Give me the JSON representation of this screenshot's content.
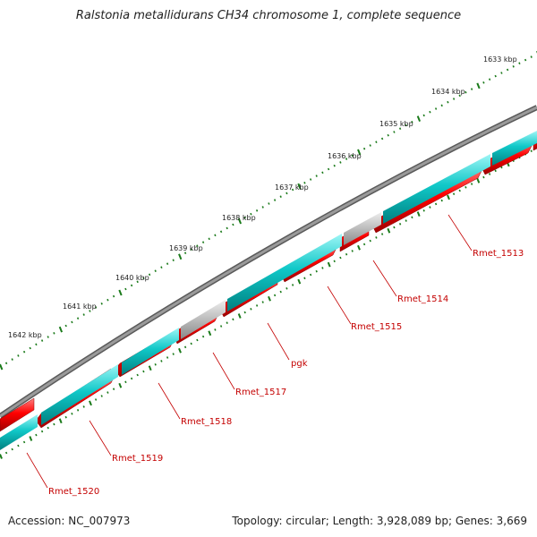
{
  "title": "Ralstonia metallidurans CH34 chromosome 1, complete sequence",
  "footer": {
    "accession": "Accession: NC_007973",
    "summary": "Topology: circular; Length: 3,928,089 bp; Genes: 3,669"
  },
  "scale_labels": [
    "1633 kbp",
    "1634 kbp",
    "1635 kbp",
    "1636 kbp",
    "1637 kbp",
    "1638 kbp",
    "1639 kbp",
    "1640 kbp",
    "1641 kbp",
    "1642 kbp"
  ],
  "gene_labels": [
    "Rmet_1513",
    "Rmet_1514",
    "Rmet_1515",
    "pgk",
    "Rmet_1517",
    "Rmet_1518",
    "Rmet_1519",
    "Rmet_1520"
  ],
  "colors": {
    "backbone": "#7f7f7f",
    "cds": "#ff0000",
    "gene": "#00c8c8",
    "rna_gray": "#b4b4b4",
    "label": "#c40000",
    "scale": "#1a7a1a"
  }
}
